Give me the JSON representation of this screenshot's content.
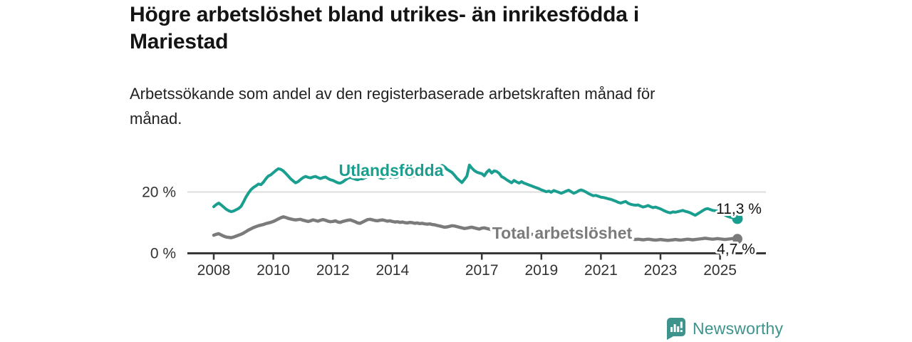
{
  "header": {
    "title": "Högre arbetslöshet bland utrikes- än inrikesfödda i Mariestad",
    "subtitle": "Arbetssökande som andel av den registerbaserade arbetskraften månad för månad."
  },
  "footer": {
    "logo_text": "Newsworthy",
    "logo_icon": "newsworthy-bar-chart-bubble-icon",
    "logo_color": "#3e948d"
  },
  "chart_data": {
    "type": "line",
    "x_unit": "month",
    "x_start_year": 2008,
    "x_end_label_period": "2025-08",
    "x_tick_years": [
      2008,
      2010,
      2012,
      2014,
      2017,
      2019,
      2021,
      2023,
      2025
    ],
    "y_ticks": [
      {
        "value": 0,
        "label": "0 %"
      },
      {
        "value": 20,
        "label": "20 %"
      }
    ],
    "ylim": [
      0,
      30
    ],
    "grid": "single-line-at-20",
    "legend_position": "inline-on-lines",
    "series": [
      {
        "name": "Utlandsfödda",
        "color": "#1a9e8f",
        "end_label": "11,3 %",
        "end_value": 11.3,
        "values": [
          15.2,
          15.9,
          16.4,
          15.8,
          15.1,
          14.4,
          13.9,
          13.6,
          13.8,
          14.2,
          14.6,
          15.3,
          16.8,
          18.4,
          19.7,
          20.8,
          21.5,
          22.0,
          22.6,
          22.4,
          23.2,
          24.3,
          25.2,
          25.6,
          26.3,
          27.0,
          27.6,
          27.4,
          26.9,
          26.1,
          25.2,
          24.3,
          23.6,
          23.0,
          23.4,
          24.1,
          24.7,
          25.1,
          24.8,
          24.6,
          24.9,
          25.1,
          24.7,
          24.4,
          24.7,
          24.9,
          24.4,
          24.0,
          23.8,
          23.4,
          23.0,
          22.9,
          23.3,
          23.9,
          24.5,
          24.8,
          24.5,
          24.2,
          24.0,
          24.3,
          24.3,
          24.7,
          25.0,
          25.3,
          25.6,
          25.2,
          24.9,
          24.6,
          24.4,
          24.7,
          25.0,
          24.8,
          25.0,
          24.7,
          24.9,
          25.2,
          25.5,
          25.3,
          25.0,
          24.8,
          25.1,
          25.3,
          25.6,
          25.4,
          25.2,
          25.5,
          25.9,
          26.3,
          26.8,
          27.3,
          27.9,
          28.4,
          28.7,
          28.2,
          27.4,
          26.9,
          26.4,
          25.5,
          24.5,
          23.8,
          23.1,
          24.1,
          25.2,
          28.8,
          27.8,
          27.0,
          26.5,
          26.2,
          26.0,
          25.3,
          26.5,
          27.2,
          26.2,
          26.9,
          26.7,
          26.1,
          25.0,
          24.6,
          24.0,
          23.5,
          23.0,
          23.8,
          23.3,
          22.9,
          23.4,
          22.9,
          22.6,
          22.3,
          22.0,
          21.7,
          21.4,
          21.1,
          20.7,
          20.4,
          20.1,
          20.3,
          19.9,
          20.5,
          20.2,
          19.9,
          19.6,
          19.9,
          20.3,
          20.6,
          20.1,
          19.6,
          19.9,
          20.4,
          20.7,
          20.4,
          20.0,
          19.5,
          19.1,
          18.8,
          18.9,
          18.6,
          18.3,
          18.2,
          18.0,
          17.8,
          17.6,
          17.3,
          17.0,
          16.6,
          16.4,
          16.7,
          16.9,
          16.3,
          16.0,
          15.8,
          15.7,
          15.8,
          15.4,
          15.1,
          15.3,
          15.6,
          15.2,
          14.9,
          15.1,
          14.8,
          14.5,
          14.1,
          13.7,
          13.4,
          13.2,
          13.5,
          13.4,
          13.6,
          13.8,
          14.0,
          13.7,
          13.5,
          13.2,
          12.8,
          12.4,
          12.9,
          13.4,
          13.9,
          14.4,
          14.6,
          14.3,
          14.0,
          13.9,
          13.8,
          13.5,
          13.0,
          12.5,
          12.1,
          11.8,
          11.6,
          11.4,
          11.3
        ]
      },
      {
        "name": "Total arbetslöshet",
        "color": "#7b7b7b",
        "end_label": "4,7 %",
        "end_value": 4.7,
        "values": [
          5.9,
          6.2,
          6.4,
          6.0,
          5.6,
          5.3,
          5.2,
          5.1,
          5.3,
          5.6,
          5.9,
          6.2,
          6.6,
          7.1,
          7.6,
          8.0,
          8.4,
          8.7,
          9.0,
          9.2,
          9.4,
          9.7,
          9.9,
          10.1,
          10.4,
          10.8,
          11.2,
          11.6,
          11.9,
          11.7,
          11.4,
          11.2,
          11.0,
          10.9,
          11.0,
          11.1,
          10.8,
          10.6,
          10.4,
          10.6,
          10.9,
          10.7,
          10.5,
          10.8,
          11.0,
          10.8,
          10.5,
          10.3,
          10.4,
          10.6,
          10.2,
          10.1,
          10.4,
          10.6,
          10.8,
          10.9,
          10.6,
          10.3,
          9.9,
          9.8,
          10.2,
          10.6,
          11.0,
          11.1,
          10.9,
          10.7,
          10.6,
          10.8,
          10.9,
          10.7,
          10.5,
          10.6,
          10.4,
          10.2,
          10.3,
          10.1,
          10.2,
          10.0,
          9.9,
          10.1,
          10.0,
          9.8,
          9.9,
          9.7,
          9.8,
          9.6,
          9.5,
          9.6,
          9.4,
          9.3,
          9.1,
          8.9,
          8.7,
          8.5,
          8.6,
          8.8,
          9.0,
          8.9,
          8.7,
          8.5,
          8.3,
          8.1,
          8.2,
          8.4,
          8.5,
          8.3,
          8.1,
          7.9,
          8.2,
          8.3,
          8.1,
          7.9,
          7.7,
          7.5,
          7.4,
          7.6,
          7.7,
          7.5,
          7.3,
          7.2,
          7.0,
          6.8,
          6.7,
          6.5,
          6.4,
          6.3,
          6.2,
          6.1,
          6.2,
          6.1,
          6.0,
          5.9,
          5.8,
          5.7,
          5.8,
          5.7,
          5.6,
          5.5,
          5.6,
          5.5,
          5.6,
          5.7,
          5.6,
          5.8,
          6.0,
          6.2,
          6.6,
          7.0,
          7.2,
          7.3,
          7.2,
          7.0,
          6.8,
          6.6,
          6.4,
          6.3,
          6.2,
          6.1,
          6.0,
          5.8,
          5.7,
          5.5,
          5.4,
          5.2,
          5.1,
          5.0,
          4.9,
          4.8,
          4.7,
          4.6,
          4.5,
          4.6,
          4.5,
          4.4,
          4.5,
          4.6,
          4.5,
          4.4,
          4.3,
          4.4,
          4.5,
          4.4,
          4.3,
          4.2,
          4.3,
          4.4,
          4.5,
          4.4,
          4.3,
          4.4,
          4.5,
          4.6,
          4.5,
          4.4,
          4.5,
          4.6,
          4.7,
          4.8,
          4.9,
          4.8,
          4.7,
          4.6,
          4.7,
          4.8,
          4.7,
          4.6,
          4.5,
          4.6,
          4.7,
          4.8,
          4.8,
          4.7
        ]
      }
    ],
    "colors": {
      "axis": "#383838",
      "gridline": "#dcdcdc",
      "tick_label": "#333333",
      "value_label": "#111111"
    }
  }
}
